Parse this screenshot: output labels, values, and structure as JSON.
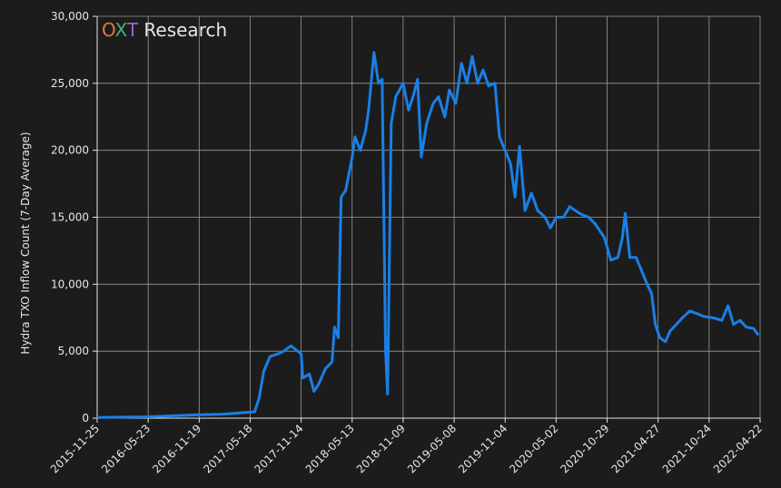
{
  "chart_data": {
    "type": "line",
    "watermark": [
      {
        "text": "O",
        "color": "#e8743b"
      },
      {
        "text": "X",
        "color": "#3fb27f"
      },
      {
        "text": "T",
        "color": "#a05fd0"
      },
      {
        "text": " Research",
        "color": "#e6e6e6"
      }
    ],
    "y_label": "Hydra TXO Inflow Count (7-Day Average)",
    "color": "#1a7fe6",
    "grid": true,
    "xlim": [
      "2015-11-25",
      "2022-04-22"
    ],
    "xticks": [
      "2015-11-25",
      "2016-05-23",
      "2016-11-19",
      "2017-05-18",
      "2017-11-14",
      "2018-05-13",
      "2018-11-09",
      "2019-05-08",
      "2019-11-04",
      "2020-05-02",
      "2020-10-29",
      "2021-04-27",
      "2021-10-24",
      "2022-04-22"
    ],
    "ylim": [
      0,
      30000
    ],
    "yticks": [
      0,
      {
        "value": 5000,
        "label": "5,000"
      },
      {
        "value": 10000,
        "label": "10,000"
      },
      {
        "value": 15000,
        "label": "15,000"
      },
      {
        "value": 20000,
        "label": "20,000"
      },
      {
        "value": 25000,
        "label": "25,000"
      },
      {
        "value": 30000,
        "label": "30,000"
      }
    ],
    "x": [
      "2015-11-25",
      "2016-05-23",
      "2016-11-19",
      "2017-02-10",
      "2017-05-18",
      "2017-06-03",
      "2017-06-19",
      "2017-07-05",
      "2017-07-27",
      "2017-08-25",
      "2017-09-13",
      "2017-10-09",
      "2017-11-14",
      "2017-11-20",
      "2017-12-13",
      "2017-12-29",
      "2018-01-14",
      "2018-02-08",
      "2018-03-03",
      "2018-03-12",
      "2018-03-25",
      "2018-04-04",
      "2018-04-20",
      "2018-05-13",
      "2018-05-23",
      "2018-06-11",
      "2018-06-30",
      "2018-07-10",
      "2018-07-29",
      "2018-08-14",
      "2018-08-27",
      "2018-09-08",
      "2018-09-15",
      "2018-09-28",
      "2018-10-14",
      "2018-11-09",
      "2018-11-28",
      "2018-12-14",
      "2018-12-30",
      "2019-01-12",
      "2019-01-31",
      "2019-02-23",
      "2019-03-14",
      "2019-04-05",
      "2019-04-21",
      "2019-05-14",
      "2019-06-03",
      "2019-06-22",
      "2019-07-11",
      "2019-07-30",
      "2019-08-18",
      "2019-09-07",
      "2019-09-29",
      "2019-10-15",
      "2019-11-04",
      "2019-11-23",
      "2019-12-09",
      "2019-12-25",
      "2020-01-13",
      "2020-02-05",
      "2020-02-27",
      "2020-03-24",
      "2020-04-12",
      "2020-05-02",
      "2020-05-28",
      "2020-06-19",
      "2020-07-08",
      "2020-07-31",
      "2020-08-25",
      "2020-09-17",
      "2020-10-03",
      "2020-10-19",
      "2020-11-11",
      "2020-12-06",
      "2020-12-22",
      "2021-01-01",
      "2021-01-17",
      "2021-02-08",
      "2021-02-28",
      "2021-03-19",
      "2021-04-04",
      "2021-04-17",
      "2021-05-03",
      "2021-05-23",
      "2021-06-08",
      "2021-06-30",
      "2021-07-22",
      "2021-08-17",
      "2021-09-12",
      "2021-10-04",
      "2021-11-06",
      "2021-12-08",
      "2021-12-30",
      "2022-01-18",
      "2022-02-10",
      "2022-03-04",
      "2022-03-30",
      "2022-04-16"
    ],
    "values": [
      50,
      100,
      250,
      300,
      450,
      480,
      1500,
      3500,
      4600,
      4800,
      5000,
      5400,
      4800,
      3000,
      3300,
      2000,
      2500,
      3700,
      4200,
      6800,
      6000,
      16500,
      17000,
      19500,
      21000,
      20000,
      21500,
      23000,
      27300,
      25000,
      25300,
      5000,
      1800,
      22000,
      24000,
      25000,
      23000,
      24000,
      25300,
      19500,
      22000,
      23500,
      24000,
      22500,
      24500,
      23500,
      26500,
      25000,
      27000,
      25000,
      26000,
      24800,
      25000,
      21000,
      20000,
      19000,
      16500,
      20300,
      15500,
      16800,
      15500,
      15000,
      14200,
      15000,
      15000,
      15800,
      15500,
      15200,
      15000,
      14500,
      14000,
      13500,
      11800,
      12000,
      13500,
      15300,
      12000,
      12000,
      11000,
      10000,
      9300,
      7000,
      6000,
      5700,
      6500,
      7000,
      7500,
      8000,
      7800,
      7600,
      7500,
      7300,
      8400,
      7000,
      7300,
      6800,
      6700,
      6200
    ]
  }
}
